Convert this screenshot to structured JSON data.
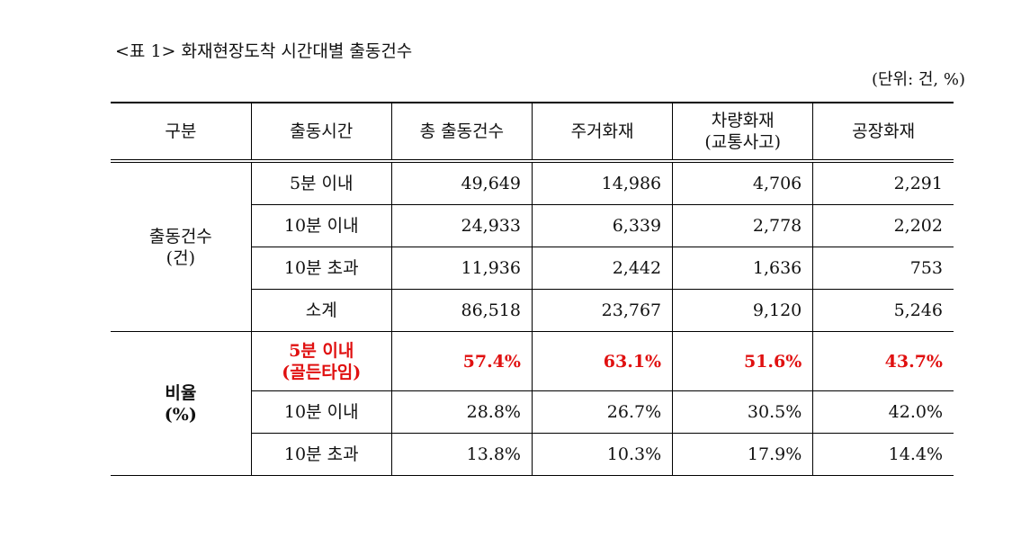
{
  "title": "<표 1> 화재현장도착 시간대별 출동건수",
  "unit": "(단위: 건, %)",
  "table": {
    "header": [
      "구분",
      "출동시간",
      "총 출동건수",
      "주거화재",
      "차량화재\n(교통사고)",
      "공장화재"
    ],
    "groups": [
      {
        "label": "출동건수",
        "unit": "(건)",
        "rows": [
          {
            "time": "5분 이내",
            "cells": [
              "49,649",
              "14,986",
              "4,706",
              "2,291"
            ]
          },
          {
            "time": "10분 이내",
            "cells": [
              "24,933",
              "6,339",
              "2,778",
              "2,202"
            ]
          },
          {
            "time": "10분 초과",
            "cells": [
              "11,936",
              "2,442",
              "1,636",
              "753"
            ]
          },
          {
            "time": "소계",
            "cells": [
              "86,518",
              "23,767",
              "9,120",
              "5,246"
            ]
          }
        ]
      },
      {
        "label": "비율",
        "unit": "(%)",
        "rows": [
          {
            "time": "5분 이내\n(골든타임)",
            "cells": [
              "57.4%",
              "63.1%",
              "51.6%",
              "43.7%"
            ],
            "highlight": true,
            "color": "#e01010"
          },
          {
            "time": "10분 이내",
            "cells": [
              "28.8%",
              "26.7%",
              "30.5%",
              "42.0%"
            ]
          },
          {
            "time": "10분 초과",
            "cells": [
              "13.8%",
              "10.3%",
              "17.9%",
              "14.4%"
            ]
          }
        ]
      }
    ]
  }
}
